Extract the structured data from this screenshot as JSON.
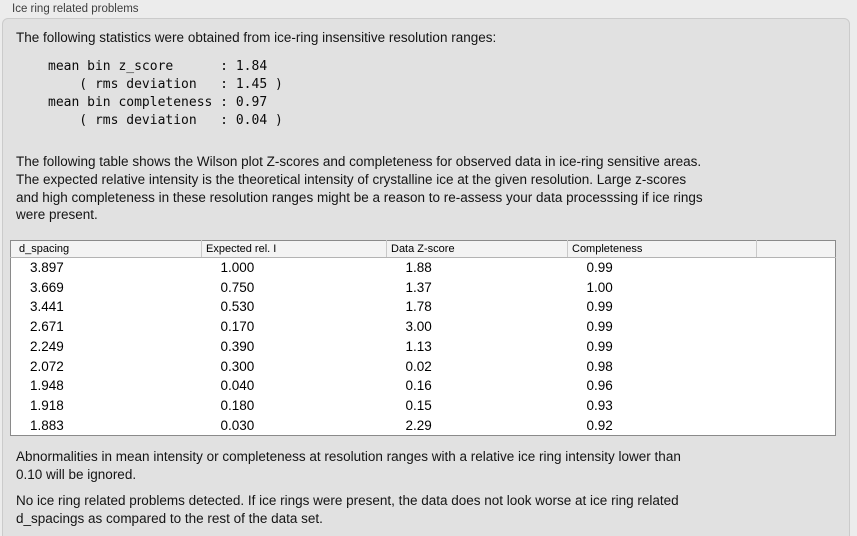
{
  "panel": {
    "title": "Ice ring related problems"
  },
  "intro": "The following statistics were obtained from ice-ring insensitive resolution ranges:",
  "stats_block": "mean bin z_score      : 1.84\n    ( rms deviation   : 1.45 )\nmean bin completeness : 0.97\n    ( rms deviation   : 0.04 )",
  "stats": {
    "mean_bin_z_score": "1.84",
    "z_score_rms_deviation": "1.45",
    "mean_bin_completeness": "0.97",
    "completeness_rms_deviation": "0.04"
  },
  "description": "The following table shows the Wilson plot Z-scores and completeness for observed data in ice-ring sensitive areas.\nThe expected relative intensity is the theoretical intensity of crystalline ice at the given resolution. Large z-scores\nand high completeness in these resolution ranges might be a reason to re-assess your data processsing if ice rings\nwere present.",
  "table": {
    "columns": [
      "d_spacing",
      "Expected rel. I",
      "Data Z-score",
      "Completeness"
    ],
    "rows": [
      [
        "3.897",
        "1.000",
        "1.88",
        "0.99"
      ],
      [
        "3.669",
        "0.750",
        "1.37",
        "1.00"
      ],
      [
        "3.441",
        "0.530",
        "1.78",
        "0.99"
      ],
      [
        "2.671",
        "0.170",
        "3.00",
        "0.99"
      ],
      [
        "2.249",
        "0.390",
        "1.13",
        "0.99"
      ],
      [
        "2.072",
        "0.300",
        "0.02",
        "0.98"
      ],
      [
        "1.948",
        "0.040",
        "0.16",
        "0.96"
      ],
      [
        "1.918",
        "0.180",
        "0.15",
        "0.93"
      ],
      [
        "1.883",
        "0.030",
        "2.29",
        "0.92"
      ]
    ]
  },
  "note_ignore": "Abnormalities in mean intensity or completeness at resolution ranges with a relative ice ring intensity lower than\n0.10 will be ignored.",
  "conclusion": "No ice ring related problems detected. If ice rings were present, the data does not look worse at ice ring related\nd_spacings as compared to the rest of the data set."
}
